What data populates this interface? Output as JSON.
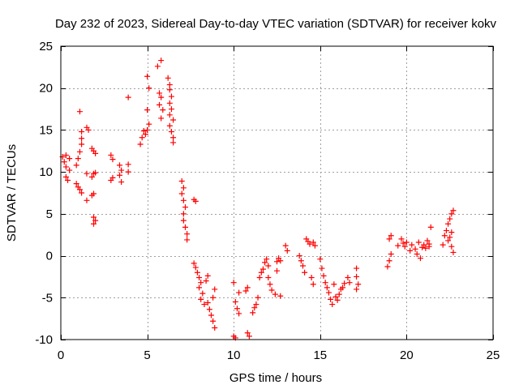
{
  "chart_data": {
    "type": "scatter",
    "title": "Day 232 of 2023, Sidereal Day-to-day VTEC variation (SDTVAR) for receiver kokv",
    "xlabel": "GPS time / hours",
    "ylabel": "SDTVAR / TECUs",
    "xlim": [
      0,
      25
    ],
    "ylim": [
      -10,
      25
    ],
    "xticks": [
      0,
      5,
      10,
      15,
      20,
      25
    ],
    "yticks": [
      -10,
      -5,
      0,
      5,
      10,
      15,
      20,
      25
    ],
    "grid": true,
    "legend": "none",
    "marker": "plus",
    "color": "#ff0000",
    "series": [
      {
        "name": "SDTVAR",
        "points": [
          [
            0.1,
            11.8
          ],
          [
            0.2,
            11.2
          ],
          [
            0.3,
            10.6
          ],
          [
            0.3,
            9.4
          ],
          [
            0.4,
            9.0
          ],
          [
            0.5,
            10.2
          ],
          [
            0.5,
            11.6
          ],
          [
            0.3,
            12.0
          ],
          [
            0.9,
            10.8
          ],
          [
            1.0,
            11.6
          ],
          [
            1.1,
            12.4
          ],
          [
            1.2,
            13.3
          ],
          [
            1.2,
            14.0
          ],
          [
            1.1,
            17.2
          ],
          [
            1.2,
            14.8
          ],
          [
            0.9,
            8.6
          ],
          [
            1.0,
            8.2
          ],
          [
            1.1,
            7.9
          ],
          [
            1.2,
            7.5
          ],
          [
            1.5,
            9.8
          ],
          [
            1.5,
            6.6
          ],
          [
            1.5,
            15.3
          ],
          [
            1.6,
            15.0
          ],
          [
            1.8,
            12.8
          ],
          [
            1.9,
            12.5
          ],
          [
            2.0,
            12.2
          ],
          [
            1.8,
            9.4
          ],
          [
            1.9,
            9.8
          ],
          [
            2.0,
            9.9
          ],
          [
            1.8,
            7.2
          ],
          [
            1.9,
            7.4
          ],
          [
            1.9,
            4.6
          ],
          [
            2.0,
            4.2
          ],
          [
            1.9,
            3.8
          ],
          [
            2.9,
            12.0
          ],
          [
            3.0,
            11.5
          ],
          [
            2.9,
            9.0
          ],
          [
            3.0,
            9.3
          ],
          [
            3.4,
            10.8
          ],
          [
            3.5,
            10.2
          ],
          [
            3.4,
            9.6
          ],
          [
            3.5,
            8.8
          ],
          [
            3.9,
            18.9
          ],
          [
            3.9,
            10.9
          ],
          [
            3.9,
            10.0
          ],
          [
            4.6,
            13.3
          ],
          [
            4.7,
            14.1
          ],
          [
            4.8,
            14.9
          ],
          [
            4.9,
            14.5
          ],
          [
            5.0,
            21.4
          ],
          [
            5.1,
            20.0
          ],
          [
            5.0,
            17.4
          ],
          [
            5.1,
            15.7
          ],
          [
            5.0,
            15.0
          ],
          [
            5.6,
            22.6
          ],
          [
            5.8,
            23.3
          ],
          [
            5.7,
            19.4
          ],
          [
            5.8,
            18.9
          ],
          [
            5.7,
            18.0
          ],
          [
            5.9,
            17.4
          ],
          [
            5.8,
            16.4
          ],
          [
            6.2,
            21.2
          ],
          [
            6.3,
            20.4
          ],
          [
            6.3,
            19.8
          ],
          [
            6.4,
            19.0
          ],
          [
            6.3,
            18.2
          ],
          [
            6.4,
            17.5
          ],
          [
            6.3,
            16.8
          ],
          [
            6.5,
            16.2
          ],
          [
            6.3,
            15.5
          ],
          [
            6.4,
            14.8
          ],
          [
            6.5,
            14.1
          ],
          [
            6.5,
            13.5
          ],
          [
            7.0,
            8.9
          ],
          [
            7.1,
            8.1
          ],
          [
            7.0,
            7.4
          ],
          [
            7.1,
            6.6
          ],
          [
            7.2,
            5.8
          ],
          [
            7.1,
            5.0
          ],
          [
            7.1,
            4.2
          ],
          [
            7.2,
            3.4
          ],
          [
            7.3,
            2.6
          ],
          [
            7.3,
            1.9
          ],
          [
            7.7,
            6.7
          ],
          [
            7.8,
            6.5
          ],
          [
            7.7,
            -0.9
          ],
          [
            7.8,
            -1.4
          ],
          [
            7.9,
            -2.0
          ],
          [
            8.0,
            -2.6
          ],
          [
            8.1,
            -3.2
          ],
          [
            8.0,
            -3.8
          ],
          [
            8.2,
            -4.5
          ],
          [
            8.1,
            -5.2
          ],
          [
            8.3,
            -5.8
          ],
          [
            8.4,
            -3.0
          ],
          [
            8.5,
            -2.4
          ],
          [
            8.5,
            -5.6
          ],
          [
            8.6,
            -6.4
          ],
          [
            8.7,
            -7.1
          ],
          [
            8.8,
            -7.8
          ],
          [
            8.9,
            -8.6
          ],
          [
            8.8,
            -5.0
          ],
          [
            8.9,
            -4.0
          ],
          [
            10.0,
            -3.2
          ],
          [
            10.1,
            -5.5
          ],
          [
            10.2,
            -6.3
          ],
          [
            10.3,
            -6.9
          ],
          [
            10.3,
            -4.4
          ],
          [
            10.0,
            -9.6
          ],
          [
            10.1,
            -9.8
          ],
          [
            10.7,
            -4.2
          ],
          [
            10.8,
            -3.8
          ],
          [
            10.8,
            -9.2
          ],
          [
            10.9,
            -9.6
          ],
          [
            11.1,
            -6.8
          ],
          [
            11.2,
            -6.2
          ],
          [
            11.3,
            -5.8
          ],
          [
            11.4,
            -5.0
          ],
          [
            11.5,
            -2.6
          ],
          [
            11.6,
            -2.0
          ],
          [
            11.7,
            -1.6
          ],
          [
            11.8,
            -0.8
          ],
          [
            11.9,
            -0.4
          ],
          [
            12.0,
            -1.2
          ],
          [
            12.0,
            -2.6
          ],
          [
            12.1,
            -3.4
          ],
          [
            12.2,
            -4.1
          ],
          [
            12.4,
            -4.6
          ],
          [
            12.5,
            -0.7
          ],
          [
            12.6,
            -0.3
          ],
          [
            12.7,
            -0.6
          ],
          [
            12.7,
            -4.8
          ],
          [
            12.5,
            -1.8
          ],
          [
            13.0,
            1.2
          ],
          [
            13.1,
            0.6
          ],
          [
            13.8,
            0.0
          ],
          [
            13.9,
            -0.6
          ],
          [
            14.0,
            -1.2
          ],
          [
            14.1,
            -2.0
          ],
          [
            14.2,
            2.0
          ],
          [
            14.3,
            1.7
          ],
          [
            14.4,
            1.4
          ],
          [
            14.5,
            -2.6
          ],
          [
            14.6,
            -3.4
          ],
          [
            14.6,
            1.6
          ],
          [
            14.7,
            1.2
          ],
          [
            15.0,
            -0.4
          ],
          [
            15.1,
            -1.5
          ],
          [
            15.2,
            -2.4
          ],
          [
            15.3,
            -3.2
          ],
          [
            15.4,
            -3.8
          ],
          [
            15.5,
            -4.4
          ],
          [
            15.6,
            -5.2
          ],
          [
            15.7,
            -5.8
          ],
          [
            15.8,
            -3.4
          ],
          [
            15.9,
            -4.9
          ],
          [
            16.0,
            -5.3
          ],
          [
            16.1,
            -4.6
          ],
          [
            16.2,
            -4.0
          ],
          [
            16.3,
            -3.8
          ],
          [
            16.4,
            -3.3
          ],
          [
            16.6,
            -2.6
          ],
          [
            16.7,
            -3.2
          ],
          [
            17.1,
            -1.5
          ],
          [
            17.1,
            -2.5
          ],
          [
            17.2,
            -3.4
          ],
          [
            17.1,
            -4.0
          ],
          [
            18.9,
            -1.3
          ],
          [
            19.0,
            -0.6
          ],
          [
            19.1,
            2.4
          ],
          [
            19.0,
            2.0
          ],
          [
            19.1,
            0.2
          ],
          [
            19.5,
            1.2
          ],
          [
            19.7,
            2.0
          ],
          [
            19.8,
            1.5
          ],
          [
            19.9,
            1.1
          ],
          [
            20.0,
            1.6
          ],
          [
            20.2,
            0.6
          ],
          [
            20.3,
            1.3
          ],
          [
            20.5,
            0.8
          ],
          [
            20.6,
            0.2
          ],
          [
            20.7,
            1.6
          ],
          [
            20.8,
            -0.3
          ],
          [
            20.9,
            1.0
          ],
          [
            21.0,
            1.3
          ],
          [
            21.1,
            0.9
          ],
          [
            21.2,
            1.8
          ],
          [
            21.3,
            1.4
          ],
          [
            21.4,
            3.4
          ],
          [
            21.3,
            1.1
          ],
          [
            22.1,
            1.3
          ],
          [
            22.2,
            2.4
          ],
          [
            22.3,
            3.0
          ],
          [
            22.4,
            3.8
          ],
          [
            22.5,
            4.4
          ],
          [
            22.6,
            5.0
          ],
          [
            22.7,
            5.4
          ],
          [
            22.5,
            2.2
          ],
          [
            22.6,
            1.1
          ],
          [
            22.7,
            0.4
          ],
          [
            22.6,
            2.8
          ],
          [
            22.4,
            1.8
          ]
        ]
      }
    ]
  }
}
